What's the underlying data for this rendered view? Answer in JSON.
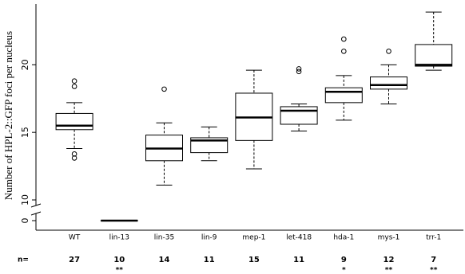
{
  "chart_data": {
    "type": "box",
    "y_label": "Number of HPL-2::GFP foci per nucleus",
    "categories": [
      "WT",
      "lin-13",
      "lin-35",
      "lin-9",
      "mep-1",
      "let-418",
      "hda-1",
      "mys-1",
      "trr-1"
    ],
    "boxes": [
      {
        "whislo": 13.8,
        "q1": 15.2,
        "med": 15.5,
        "q3": 16.4,
        "whishi": 17.2,
        "fliers": [
          18.8,
          18.4,
          13.4,
          13.1
        ]
      },
      {
        "whislo": 0,
        "q1": 0,
        "med": 0,
        "q3": 0,
        "whishi": 0,
        "fliers": []
      },
      {
        "whislo": 11.1,
        "q1": 12.9,
        "med": 13.8,
        "q3": 14.8,
        "whishi": 15.7,
        "fliers": [
          18.2
        ]
      },
      {
        "whislo": 12.9,
        "q1": 13.5,
        "med": 14.4,
        "q3": 14.6,
        "whishi": 15.4,
        "fliers": []
      },
      {
        "whislo": 12.3,
        "q1": 14.4,
        "med": 16.1,
        "q3": 17.9,
        "whishi": 19.6,
        "fliers": []
      },
      {
        "whislo": 15.1,
        "q1": 15.6,
        "med": 16.6,
        "q3": 16.9,
        "whishi": 17.1,
        "fliers": [
          19.7,
          19.5
        ]
      },
      {
        "whislo": 15.9,
        "q1": 17.2,
        "med": 18.0,
        "q3": 18.3,
        "whishi": 19.2,
        "fliers": [
          21.9,
          21.0
        ]
      },
      {
        "whislo": 17.1,
        "q1": 18.2,
        "med": 18.5,
        "q3": 19.1,
        "whishi": 20.0,
        "fliers": [
          21.0
        ]
      },
      {
        "whislo": 19.6,
        "q1": 19.9,
        "med": 20.0,
        "q3": 21.5,
        "whishi": 23.9,
        "fliers": []
      }
    ],
    "n_label": "n=",
    "n": [
      27,
      10,
      14,
      11,
      15,
      11,
      9,
      12,
      7
    ],
    "significance": [
      null,
      "**",
      null,
      null,
      null,
      null,
      "*",
      "**",
      "**"
    ],
    "ylim": [
      0,
      24.5
    ],
    "yticks": [
      0,
      10,
      15,
      20
    ],
    "axis_break": true,
    "color": "#000000"
  }
}
